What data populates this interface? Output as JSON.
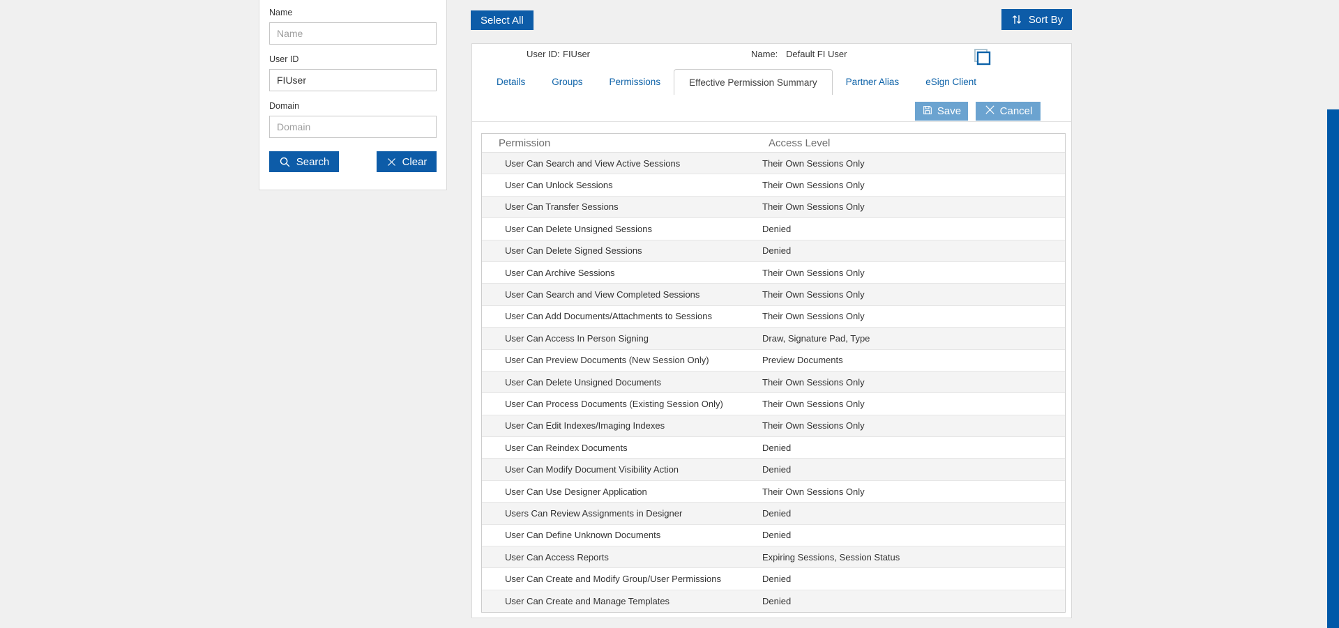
{
  "colors": {
    "primary_blue": "#0d5ca8",
    "muted_action_blue": "#6ba3d0",
    "tab_link_blue": "#0d62a8",
    "accent_strip_blue": "#0058a8",
    "page_background": "#f0f0f0",
    "alt_row_background": "#f4f4f4"
  },
  "icons": {
    "search": "magnifying-glass",
    "clear": "x-cross",
    "sort": "up-down-arrows",
    "save": "floppy-disk",
    "cancel": "x-cross",
    "copy": "overlapping-squares"
  },
  "search_panel": {
    "name_label": "Name",
    "name_placeholder": "Name",
    "name_value": "",
    "user_id_label": "User ID",
    "user_id_value": "FIUser",
    "domain_label": "Domain",
    "domain_placeholder": "Domain",
    "domain_value": "",
    "search_button": "Search",
    "clear_button": "Clear"
  },
  "toolbar": {
    "select_all": "Select All",
    "sort_by": "Sort By"
  },
  "user_summary": {
    "user_id_label": "User ID:",
    "user_id_value": "FIUser",
    "name_label": "Name:",
    "name_value": "Default FI User"
  },
  "tabs": [
    {
      "label": "Details",
      "active": false
    },
    {
      "label": "Groups",
      "active": false
    },
    {
      "label": "Permissions",
      "active": false
    },
    {
      "label": "Effective Permission Summary",
      "active": true
    },
    {
      "label": "Partner Alias",
      "active": false
    },
    {
      "label": "eSign Client",
      "active": false
    }
  ],
  "actions": {
    "save": "Save",
    "cancel": "Cancel"
  },
  "table": {
    "columns": [
      "Permission",
      "Access Level"
    ],
    "rows": [
      [
        "User Can Search and View Active Sessions",
        "Their Own Sessions Only"
      ],
      [
        "User Can Unlock Sessions",
        "Their Own Sessions Only"
      ],
      [
        "User Can Transfer Sessions",
        "Their Own Sessions Only"
      ],
      [
        "User Can Delete Unsigned Sessions",
        "Denied"
      ],
      [
        "User Can Delete Signed Sessions",
        "Denied"
      ],
      [
        "User Can Archive Sessions",
        "Their Own Sessions Only"
      ],
      [
        "User Can Search and View Completed Sessions",
        "Their Own Sessions Only"
      ],
      [
        "User Can Add Documents/Attachments to Sessions",
        "Their Own Sessions Only"
      ],
      [
        "User Can Access In Person Signing",
        "Draw, Signature Pad, Type"
      ],
      [
        "User Can Preview Documents (New Session Only)",
        "Preview Documents"
      ],
      [
        "User Can Delete Unsigned Documents",
        "Their Own Sessions Only"
      ],
      [
        "User Can Process Documents (Existing Session Only)",
        "Their Own Sessions Only"
      ],
      [
        "User Can Edit Indexes/Imaging Indexes",
        "Their Own Sessions Only"
      ],
      [
        "User Can Reindex Documents",
        "Denied"
      ],
      [
        "User Can Modify Document Visibility Action",
        "Denied"
      ],
      [
        "User Can Use Designer Application",
        "Their Own Sessions Only"
      ],
      [
        "Users Can Review Assignments in Designer",
        "Denied"
      ],
      [
        "User Can Define Unknown Documents",
        "Denied"
      ],
      [
        "User Can Access Reports",
        "Expiring Sessions, Session Status"
      ],
      [
        "User Can Create and Modify Group/User Permissions",
        "Denied"
      ],
      [
        "User Can Create and Manage Templates",
        "Denied"
      ]
    ]
  }
}
